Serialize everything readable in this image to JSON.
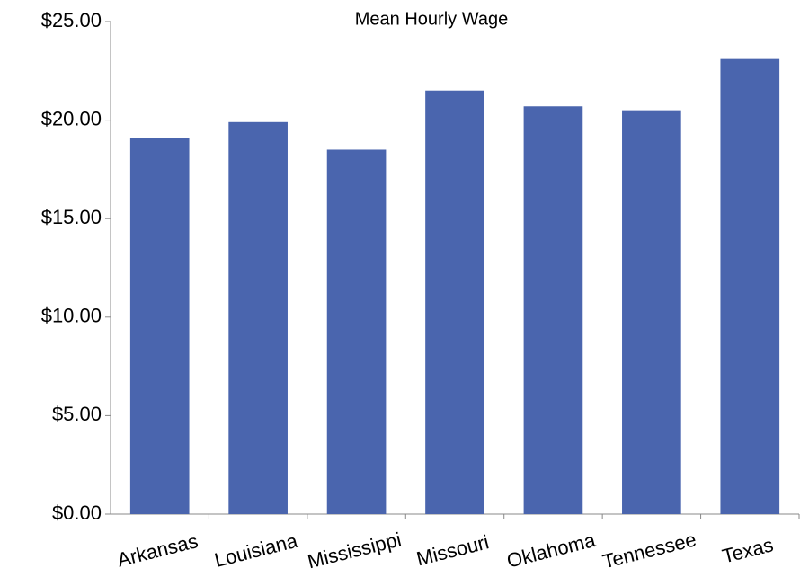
{
  "chart_data": {
    "type": "bar",
    "title": "Mean Hourly Wage",
    "categories": [
      "Arkansas",
      "Louisiana",
      "Mississippi",
      "Missouri",
      "Oklahoma",
      "Tennessee",
      "Texas"
    ],
    "values": [
      19.1,
      19.9,
      18.5,
      21.5,
      20.7,
      20.5,
      23.1
    ],
    "color": "#4a65ae",
    "ylim": [
      0,
      25
    ],
    "yticks": [
      {
        "value": 0,
        "label": "$0.00"
      },
      {
        "value": 5,
        "label": "$5.00"
      },
      {
        "value": 10,
        "label": "$10.00"
      },
      {
        "value": 15,
        "label": "$15.00"
      },
      {
        "value": 20,
        "label": "$20.00"
      },
      {
        "value": 25,
        "label": "$25.00"
      }
    ],
    "grid": false
  }
}
